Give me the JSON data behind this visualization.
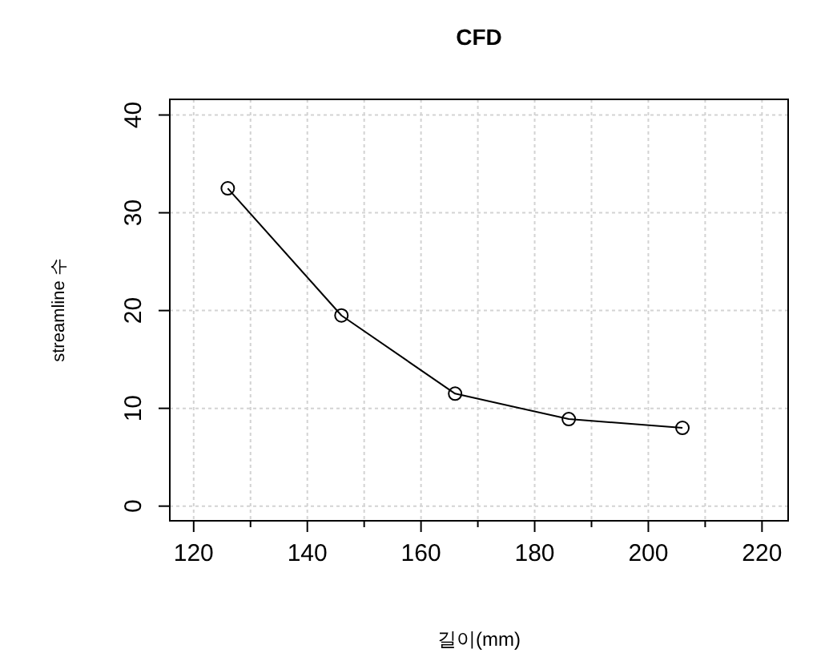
{
  "chart_data": {
    "type": "line",
    "title": "CFD",
    "xlabel": "길이(mm)",
    "ylabel": "streamline 수",
    "x": [
      126,
      146,
      166,
      186,
      206
    ],
    "series": [
      {
        "color": "#000000",
        "values": [
          32.5,
          19.5,
          11.5,
          8.9,
          8.0
        ]
      }
    ],
    "xlim": [
      115.8,
      224.6
    ],
    "ylim": [
      -1.5,
      41.6
    ],
    "xticks": [
      120,
      {
        "value": 130,
        "label": null
      },
      140,
      {
        "value": 150,
        "label": null
      },
      160,
      {
        "value": 170,
        "label": null
      },
      180,
      {
        "value": 190,
        "label": null
      },
      200,
      {
        "value": 210,
        "label": null
      },
      220
    ],
    "yticks": [
      0,
      10,
      20,
      30,
      40
    ],
    "grid": true,
    "marker": "circle",
    "line_style": "solid"
  }
}
